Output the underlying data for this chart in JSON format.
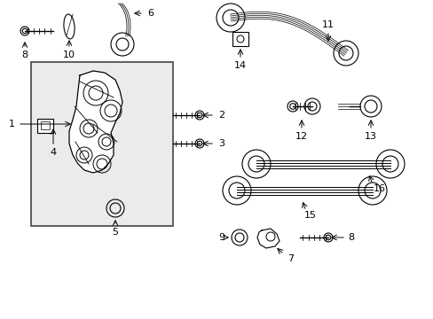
{
  "background_color": "#ffffff",
  "box_fill": "#ebebeb",
  "box_stroke": "#444444",
  "line_color": "#000000",
  "label_color": "#000000",
  "fig_w": 4.89,
  "fig_h": 3.6,
  "dpi": 100
}
